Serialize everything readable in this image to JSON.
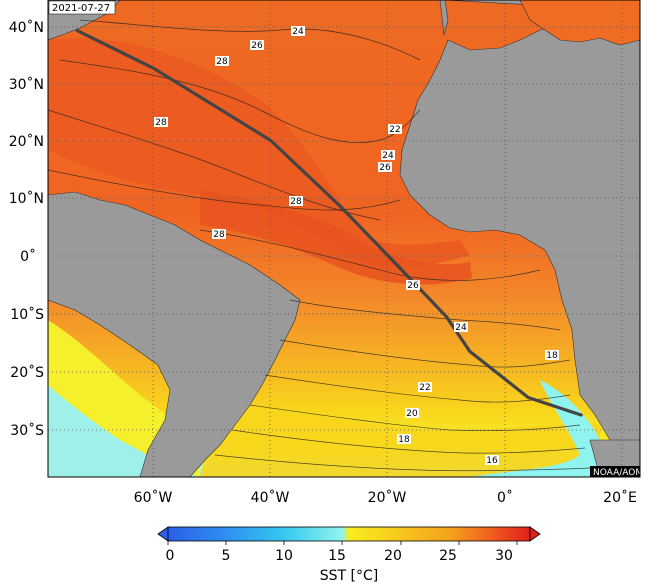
{
  "map": {
    "date_label": "2021-07-27",
    "credit": "NOAA/AOML",
    "lat_labels": [
      "40˚N",
      "30˚N",
      "20˚N",
      "10˚N",
      "0˚",
      "10˚S",
      "20˚S",
      "30˚S"
    ],
    "lon_labels": [
      "60˚W",
      "40˚W",
      "20˚W",
      "0˚",
      "20˚E"
    ],
    "isotherm_labels": [
      "24",
      "26",
      "28",
      "28",
      "22",
      "24",
      "26",
      "28",
      "28",
      "26",
      "24",
      "18",
      "22",
      "20",
      "18",
      "16"
    ]
  },
  "colorbar": {
    "ticks": [
      "0",
      "5",
      "10",
      "15",
      "20",
      "25",
      "30"
    ],
    "title": "SST [°C]",
    "colors": {
      "deep_blue": "#2a5fe8",
      "light_blue": "#35c8f0",
      "cyan": "#8ff3ef",
      "yellow": "#f8ee1f",
      "orange": "#f4a11c",
      "red_orange": "#ef5a1f",
      "red": "#e0201b"
    }
  },
  "track": {
    "name": "",
    "color": "#444444",
    "points": [
      {
        "lon": -73,
        "lat": 39.0
      },
      {
        "lon": -60,
        "lat": 32.5
      },
      {
        "lon": -48,
        "lat": 25.0
      },
      {
        "lon": -40,
        "lat": 20.0
      },
      {
        "lon": -28,
        "lat": 8.5
      },
      {
        "lon": -18,
        "lat": -2.0
      },
      {
        "lon": -10,
        "lat": -10.5
      },
      {
        "lon": -6,
        "lat": -16.5
      },
      {
        "lon": 4,
        "lat": -24.5
      },
      {
        "lon": 13,
        "lat": -27.5
      }
    ]
  }
}
